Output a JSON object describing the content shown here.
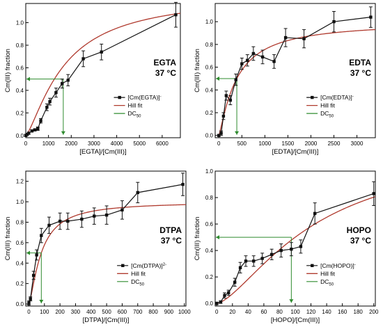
{
  "colors": {
    "data": "#111111",
    "fit": "#b03a2e",
    "dc50": "#2e8b2e"
  },
  "chart_data": [
    {
      "type": "line",
      "id": "egta",
      "title": "EGTA",
      "subtitle": "37 °C",
      "xlabel": "[EGTA]/[Cm(III)]",
      "ylabel": "Cm(III) fraction",
      "xlim": [
        0,
        6800
      ],
      "ylim": [
        -0.02,
        1.17
      ],
      "xticks": [
        0,
        1000,
        2000,
        3000,
        4000,
        5000,
        6000
      ],
      "yticks": [
        0.0,
        0.2,
        0.4,
        0.6,
        0.8,
        1.0
      ],
      "ytick_labels": [
        "0.0",
        "0.2",
        "0.4",
        "0.6",
        "0.8",
        "1.0"
      ],
      "legend": {
        "placement": "bottom-right",
        "data_label": "[Cm(EGTA)]",
        "data_sup": "-",
        "fit_label": "Hill fit",
        "dc_label": "DC",
        "dc_sub": "50"
      },
      "series": [
        {
          "name": "[Cm(EGTA)]-",
          "x": [
            0,
            60,
            130,
            270,
            400,
            530,
            660,
            930,
            1060,
            1330,
            1600,
            1860,
            2530,
            3330,
            6600
          ],
          "y": [
            0.0,
            0.01,
            0.02,
            0.04,
            0.05,
            0.06,
            0.13,
            0.25,
            0.3,
            0.38,
            0.46,
            0.49,
            0.68,
            0.74,
            1.07
          ],
          "err": [
            0.01,
            0.01,
            0.01,
            0.01,
            0.01,
            0.015,
            0.02,
            0.03,
            0.03,
            0.04,
            0.04,
            0.05,
            0.07,
            0.07,
            0.11
          ]
        }
      ],
      "fit": {
        "name": "Hill fit",
        "ymax": 1.25,
        "k": 1700,
        "n": 1.35
      },
      "dc50": {
        "x": 1650,
        "y": 0.5
      }
    },
    {
      "type": "line",
      "id": "edta",
      "title": "EDTA",
      "subtitle": "37 °C",
      "xlabel": "[EDTA]/[Cm(III)]",
      "ylabel": "Cm(III) fraction",
      "xlim": [
        -80,
        3400
      ],
      "ylim": [
        -0.02,
        1.16
      ],
      "xticks": [
        0,
        500,
        1000,
        1500,
        2000,
        2500,
        3000
      ],
      "yticks": [
        0.0,
        0.2,
        0.4,
        0.6,
        0.8,
        1.0
      ],
      "ytick_labels": [
        "0.0",
        "0.2",
        "0.4",
        "0.6",
        "0.8",
        "1.0"
      ],
      "legend": {
        "placement": "bottom-right",
        "data_label": "[Cm(EDTA)]",
        "data_sup": "-",
        "fit_label": "Hill fit",
        "dc_label": "DC",
        "dc_sub": "50"
      },
      "series": [
        {
          "name": "[Cm(EDTA)]-",
          "x": [
            0,
            50,
            100,
            160,
            250,
            370,
            500,
            620,
            750,
            950,
            1200,
            1450,
            1850,
            2500,
            3300
          ],
          "y": [
            0.0,
            0.02,
            0.17,
            0.35,
            0.31,
            0.49,
            0.63,
            0.66,
            0.72,
            0.69,
            0.65,
            0.86,
            0.85,
            1.0,
            1.04
          ],
          "err": [
            0.01,
            0.02,
            0.03,
            0.04,
            0.04,
            0.05,
            0.05,
            0.05,
            0.06,
            0.06,
            0.06,
            0.08,
            0.08,
            0.09,
            0.09
          ]
        }
      ],
      "fit": {
        "name": "Hill fit",
        "ymax": 1.0,
        "k": 390,
        "n": 1.2
      },
      "dc50": {
        "x": 390,
        "y": 0.5
      }
    },
    {
      "type": "line",
      "id": "dtpa",
      "title": "DTPA",
      "subtitle": "37 °C",
      "xlabel": "[DTPA]/[Cm(III)]",
      "ylabel": "Cm(III) fraction",
      "xlim": [
        -20,
        1010
      ],
      "ylim": [
        -0.02,
        1.3
      ],
      "xticks": [
        0,
        100,
        200,
        300,
        400,
        500,
        600,
        700,
        800,
        900,
        1000
      ],
      "yticks": [
        0.0,
        0.2,
        0.4,
        0.6,
        0.8,
        1.0,
        1.2
      ],
      "ytick_labels": [
        "0.0",
        "0.2",
        "0.4",
        "0.6",
        "0.8",
        "1.0",
        "1.2"
      ],
      "legend": {
        "placement": "bottom-right",
        "data_label": "[Cm(DTPA)]",
        "data_sup": "2-",
        "fit_label": "Hill fit",
        "dc_label": "DC",
        "dc_sub": "50"
      },
      "series": [
        {
          "name": "[Cm(DTPA)]2-",
          "x": [
            0,
            10,
            30,
            50,
            80,
            130,
            200,
            250,
            340,
            420,
            500,
            600,
            700,
            990
          ],
          "y": [
            0.01,
            0.05,
            0.28,
            0.48,
            0.67,
            0.77,
            0.81,
            0.81,
            0.83,
            0.86,
            0.87,
            0.92,
            1.09,
            1.17
          ],
          "err": [
            0.02,
            0.02,
            0.04,
            0.05,
            0.07,
            0.08,
            0.08,
            0.08,
            0.08,
            0.08,
            0.09,
            0.09,
            0.1,
            0.11
          ]
        }
      ],
      "fit": {
        "name": "Hill fit",
        "ymax": 1.0,
        "k": 80,
        "n": 1.4
      },
      "dc50": {
        "x": 80,
        "y": 0.5
      }
    },
    {
      "type": "line",
      "id": "hopo",
      "title": "HOPO",
      "subtitle": "37 °C",
      "xlabel": "[HOPO]/[Cm(III)]",
      "ylabel": "Cm(III) fraction",
      "xlim": [
        -2,
        202
      ],
      "ylim": [
        -0.02,
        1.0
      ],
      "xticks": [
        0,
        20,
        40,
        60,
        80,
        100,
        120,
        140,
        160,
        180,
        200
      ],
      "yticks": [
        0.0,
        0.2,
        0.4,
        0.6,
        0.8,
        1.0
      ],
      "ytick_labels": [
        "0.0",
        "0.2",
        "0.4",
        "0.6",
        "0.8",
        "1.0"
      ],
      "legend": {
        "placement": "bottom-right",
        "data_label": "[Cm(HOPO)]",
        "data_sup": "-",
        "fit_label": "Hill fit",
        "dc_label": "DC",
        "dc_sub": "50"
      },
      "series": [
        {
          "name": "[Cm(HOPO)]-",
          "x": [
            0,
            5,
            10,
            15,
            23,
            30,
            37,
            47,
            58,
            70,
            82,
            95,
            107,
            125,
            200
          ],
          "y": [
            0.0,
            0.01,
            0.06,
            0.08,
            0.16,
            0.27,
            0.32,
            0.32,
            0.34,
            0.37,
            0.4,
            0.41,
            0.43,
            0.68,
            0.83
          ],
          "err": [
            0.01,
            0.01,
            0.02,
            0.02,
            0.03,
            0.04,
            0.04,
            0.04,
            0.04,
            0.04,
            0.05,
            0.05,
            0.05,
            0.08,
            0.09
          ]
        }
      ],
      "fit": {
        "name": "Hill fit",
        "ymax": 1.2,
        "k": 125,
        "n": 1.5
      },
      "dc50": {
        "x": 95,
        "y": 0.5
      }
    }
  ]
}
